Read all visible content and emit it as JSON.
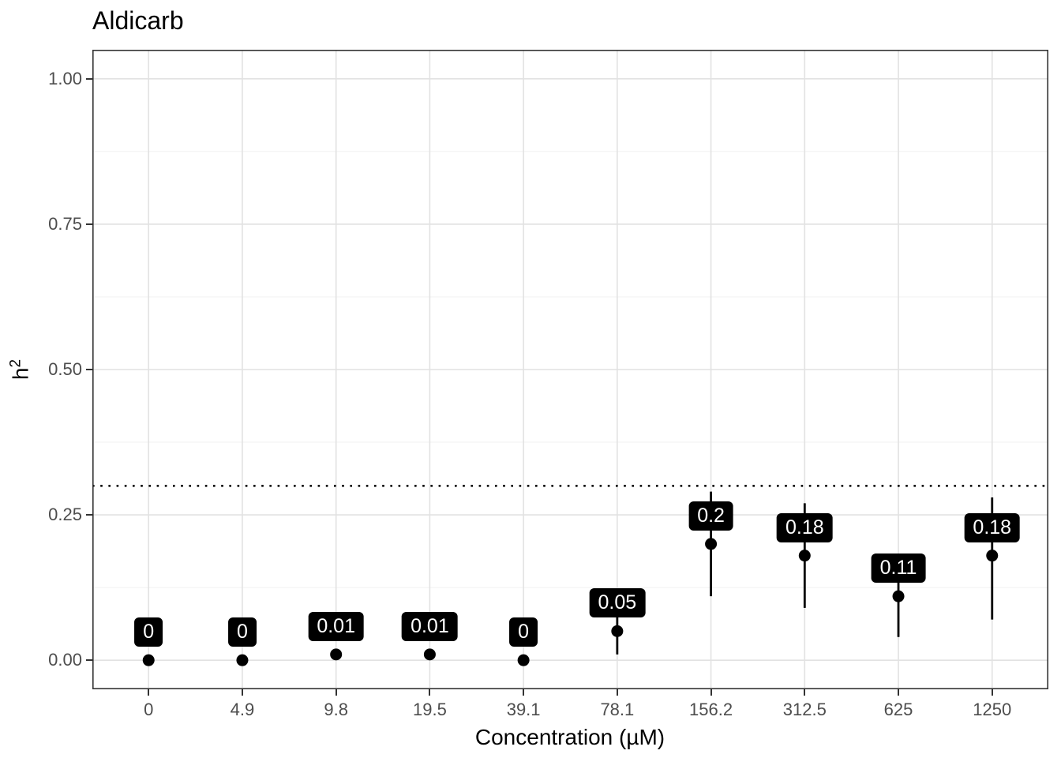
{
  "title": "Aldicarb",
  "chart_data": {
    "type": "pointrange",
    "title": "Aldicarb",
    "xlabel": "Concentration (µM)",
    "ylabel": {
      "base": "h",
      "exponent": "2"
    },
    "categories": [
      "0",
      "4.9",
      "9.8",
      "19.5",
      "39.1",
      "78.1",
      "156.2",
      "312.5",
      "625",
      "1250"
    ],
    "values": [
      0,
      0,
      0.01,
      0.01,
      0,
      0.05,
      0.2,
      0.18,
      0.11,
      0.18
    ],
    "point_labels": [
      "0",
      "0",
      "0.01",
      "0.01",
      "0",
      "0.05",
      "0.2",
      "0.18",
      "0.11",
      "0.18"
    ],
    "error_low": [
      null,
      null,
      null,
      null,
      null,
      0.01,
      0.11,
      0.09,
      0.04,
      0.07
    ],
    "error_high": [
      null,
      null,
      null,
      null,
      null,
      0.08,
      0.29,
      0.27,
      0.17,
      0.28
    ],
    "reference_line": {
      "y": 0.3,
      "style": "dotted",
      "color": "#000000"
    },
    "y_ticks": [
      {
        "value": 0.0,
        "label": "0.00"
      },
      {
        "value": 0.25,
        "label": "0.25"
      },
      {
        "value": 0.5,
        "label": "0.50"
      },
      {
        "value": 0.75,
        "label": "0.75"
      },
      {
        "value": 1.0,
        "label": "1.00"
      }
    ],
    "minor_y": [
      0.125,
      0.375,
      0.625,
      0.875
    ],
    "ylim": [
      -0.05,
      1.05
    ],
    "legend": "none",
    "grid": {
      "horizontal": true,
      "vertical": true,
      "minor_horizontal": true
    },
    "colors": {
      "point": "#000000",
      "error_bar": "#000000",
      "label_bg": "#000000",
      "label_text": "#ffffff",
      "grid_major": "#e2e2e2",
      "grid_minor": "#f0f0f0",
      "panel_border": "#333333",
      "tick_text": "#4d4d4d",
      "axis_text": "#000000",
      "panel_bg": "#ffffff"
    }
  }
}
